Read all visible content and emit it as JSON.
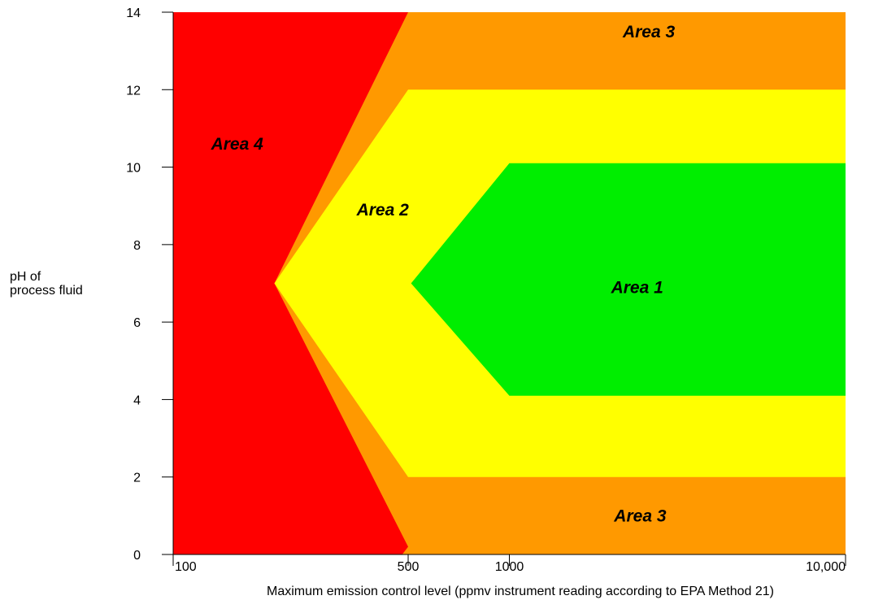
{
  "chart_data": {
    "type": "area",
    "x_scale": "log",
    "xlim": [
      100,
      10000
    ],
    "ylim": [
      0,
      14
    ],
    "xlabel": "Maximum emission control level (ppmv instrument reading according to EPA Method 21)",
    "ylabel_lines": [
      "pH of",
      "process fluid"
    ],
    "x_ticks": [
      {
        "value": 100,
        "label": "100"
      },
      {
        "value": 500,
        "label": "500"
      },
      {
        "value": 1000,
        "label": "1000"
      },
      {
        "value": 10000,
        "label": "10,000"
      }
    ],
    "y_ticks": [
      {
        "value": 0,
        "label": "0"
      },
      {
        "value": 2,
        "label": "2"
      },
      {
        "value": 4,
        "label": "4"
      },
      {
        "value": 6,
        "label": "6"
      },
      {
        "value": 8,
        "label": "8"
      },
      {
        "value": 10,
        "label": "10"
      },
      {
        "value": 12,
        "label": "12"
      },
      {
        "value": 14,
        "label": "14"
      }
    ],
    "regions": [
      {
        "name": "Area 3",
        "color": "#FF9900",
        "points": [
          [
            100,
            0
          ],
          [
            10000,
            0
          ],
          [
            10000,
            14
          ],
          [
            100,
            14
          ]
        ]
      },
      {
        "name": "Area 4",
        "color": "#FF0000",
        "points": [
          [
            100,
            0
          ],
          [
            480,
            0
          ],
          [
            500,
            0.2
          ],
          [
            200,
            7
          ],
          [
            500,
            14
          ],
          [
            100,
            14
          ]
        ]
      },
      {
        "name": "Area 2",
        "color": "#FFFF00",
        "points": [
          [
            200,
            7
          ],
          [
            500,
            12
          ],
          [
            10000,
            12
          ],
          [
            10000,
            2
          ],
          [
            500,
            2
          ]
        ]
      },
      {
        "name": "Area 1",
        "color": "#00EE00",
        "points": [
          [
            510,
            7
          ],
          [
            1000,
            10.1
          ],
          [
            10000,
            10.1
          ],
          [
            10000,
            4.1
          ],
          [
            1000,
            4.1
          ]
        ]
      }
    ],
    "labels": [
      {
        "text": "Area 4",
        "x": 155,
        "y": 10.6
      },
      {
        "text": "Area 2",
        "x": 420,
        "y": 8.9
      },
      {
        "text": "Area 1",
        "x": 2400,
        "y": 6.9
      },
      {
        "text": "Area 3",
        "x": 2600,
        "y": 13.5
      },
      {
        "text": "Area 3",
        "x": 2450,
        "y": 1.0
      }
    ],
    "grid": false
  }
}
